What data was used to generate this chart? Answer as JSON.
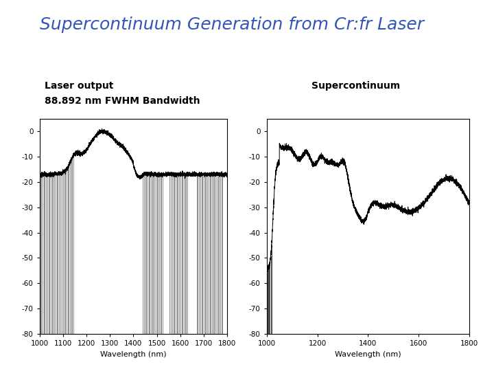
{
  "title": "Supercontinuum Generation from Cr:fr Laser",
  "title_color": "#3355bb",
  "title_fontsize": 18,
  "left_label": "Laser output",
  "left_sublabel": "88.892 nm FWHM Bandwidth",
  "right_label": "Supercontinuum",
  "xlabel": "Wavelength (nm)",
  "xlim": [
    1000,
    1800
  ],
  "ylim": [
    -80,
    5
  ],
  "yticks": [
    0,
    -10,
    -20,
    -30,
    -40,
    -50,
    -60,
    -70,
    -80
  ],
  "xticks_left": [
    1000,
    1100,
    1200,
    1300,
    1400,
    1500,
    1600,
    1700,
    1800
  ],
  "xticks_right": [
    1000,
    1200,
    1400,
    1600,
    1800
  ],
  "background_color": "#ffffff",
  "plot_bg_color": "#ffffff"
}
